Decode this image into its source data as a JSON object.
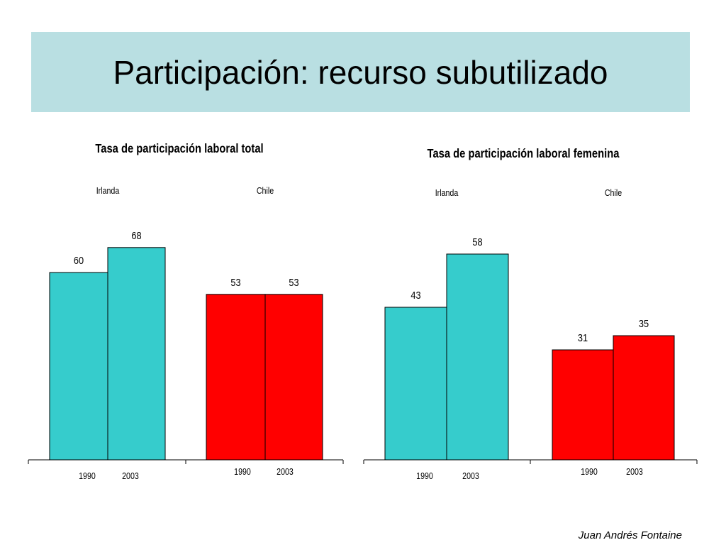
{
  "slide": {
    "title": "Participación: recurso subutilizado",
    "footer": "Juan Andrés Fontaine"
  },
  "colors": {
    "title_band": "#b9dfe2",
    "irlanda": "#36cccc",
    "chile": "#ff0000"
  },
  "chart_data": [
    {
      "type": "bar",
      "title": "Tasa de participación laboral total",
      "groups": [
        "Irlanda",
        "Chile"
      ],
      "categories": [
        "1990",
        "2003"
      ],
      "series": [
        {
          "group": "Irlanda",
          "values": [
            60,
            68
          ],
          "color": "#36cccc"
        },
        {
          "group": "Chile",
          "values": [
            53,
            53
          ],
          "color": "#ff0000"
        }
      ],
      "data_labels": true,
      "grid": false
    },
    {
      "type": "bar",
      "title": "Tasa de participación laboral femenina",
      "groups": [
        "Irlanda",
        "Chile"
      ],
      "categories": [
        "1990",
        "2003"
      ],
      "series": [
        {
          "group": "Irlanda",
          "values": [
            43,
            58
          ],
          "color": "#36cccc"
        },
        {
          "group": "Chile",
          "values": [
            31,
            35
          ],
          "color": "#ff0000"
        }
      ],
      "data_labels": true,
      "grid": false
    }
  ]
}
